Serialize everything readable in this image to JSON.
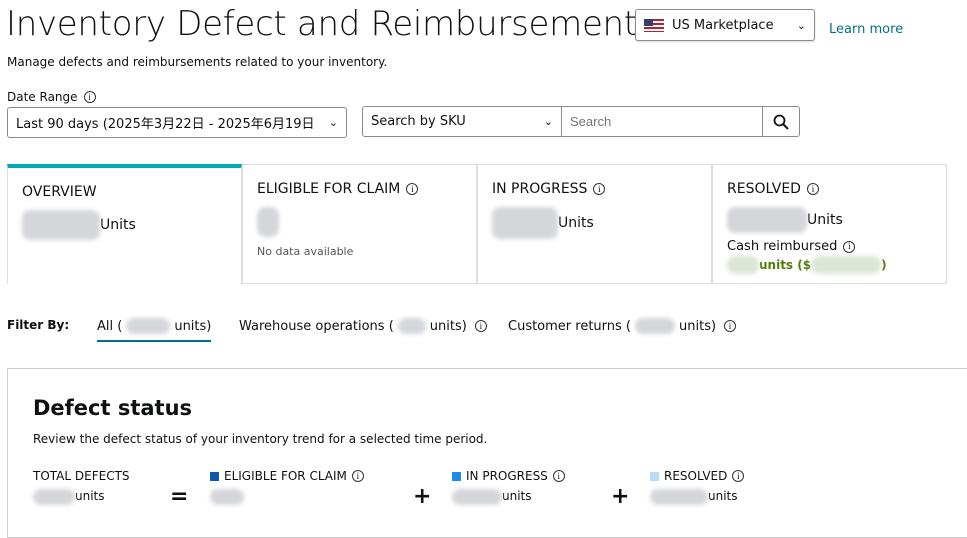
{
  "header": {
    "title": "Inventory Defect and Reimbursement",
    "marketplace": "US Marketplace",
    "learn_more": "Learn more",
    "subtitle": "Manage defects and reimbursements related to your inventory."
  },
  "filters": {
    "date_range_label": "Date Range",
    "date_range_value": "Last 90 days (2025年3月22日 - 2025年6月19日",
    "search_by": "Search by SKU",
    "search_placeholder": "Search"
  },
  "cards": [
    {
      "title": "OVERVIEW",
      "units": "Units",
      "active": true
    },
    {
      "title": "ELIGIBLE FOR CLAIM",
      "note": "No data available"
    },
    {
      "title": "IN PROGRESS",
      "units": "Units"
    },
    {
      "title": "RESOLVED",
      "units": "Units",
      "cash_label": "Cash reimbursed",
      "cash_units": "units ($",
      "cash_close": ")"
    }
  ],
  "filter_by": {
    "label": "Filter By:",
    "tabs": [
      {
        "label_pre": "All (",
        "label_post": "units)",
        "active": true
      },
      {
        "label_pre": "Warehouse operations (",
        "label_post": "units)"
      },
      {
        "label_pre": "Customer returns (",
        "label_post": "units)"
      }
    ]
  },
  "defect_status": {
    "title": "Defect status",
    "subtitle": "Review the defect status of your inventory trend for a selected time period.",
    "total": "TOTAL DEFECTS",
    "eligible": "ELIGIBLE FOR CLAIM",
    "in_progress": "IN PROGRESS",
    "resolved": "RESOLVED",
    "units": "units",
    "equals": "=",
    "plus": "+"
  },
  "colors": {
    "accent": "#00a8b5",
    "eligible": "#0d5ba7",
    "in_progress": "#1b8fe8",
    "resolved": "#b8dcf7",
    "cash": "#507d0a"
  }
}
